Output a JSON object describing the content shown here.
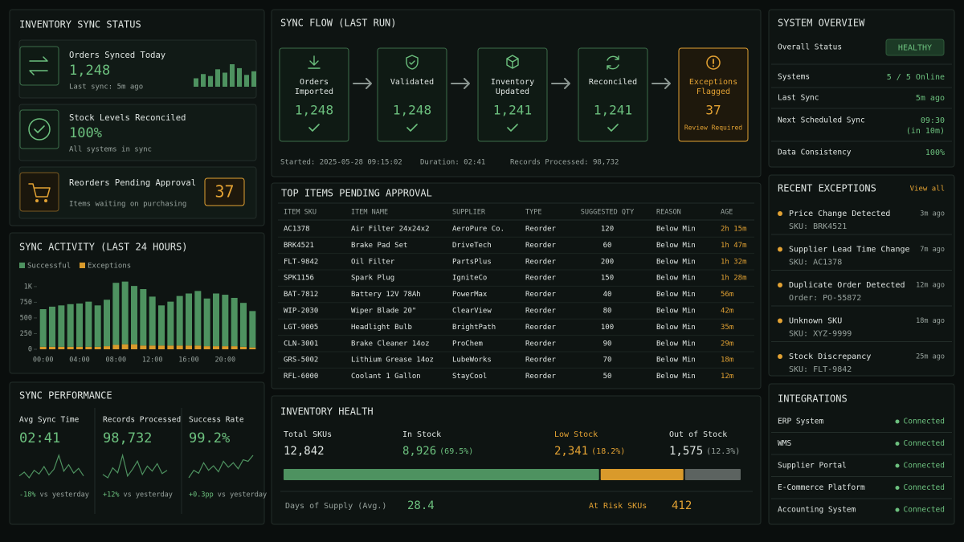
{
  "inventory_sync_status": {
    "title": "INVENTORY SYNC STATUS",
    "orders_synced": {
      "label": "Orders Synced Today",
      "value": "1,248",
      "note": "Last sync: 5m ago",
      "trend": [
        30,
        45,
        38,
        62,
        50,
        80,
        66,
        42,
        55
      ]
    },
    "stock_reconciled": {
      "label": "Stock Levels Reconciled",
      "value": "100%",
      "note": "All systems in sync"
    },
    "reorders_pending": {
      "label": "Reorders Pending Approval",
      "note": "Items waiting on purchasing",
      "value": "37"
    }
  },
  "chart_data": {
    "type": "bar",
    "stacked": true,
    "title": "SYNC ACTIVITY (LAST 24 HOURS)",
    "categories": [
      "00:00",
      null,
      null,
      null,
      "04:00",
      null,
      null,
      null,
      "08:00",
      null,
      null,
      null,
      "12:00",
      null,
      null,
      null,
      "16:00",
      null,
      null,
      null,
      "20:00",
      null,
      null,
      null
    ],
    "series": [
      {
        "name": "Successful",
        "color": "#4e9260",
        "values": [
          600,
          640,
          660,
          680,
          690,
          720,
          660,
          740,
          990,
          1000,
          930,
          900,
          780,
          640,
          700,
          790,
          830,
          870,
          760,
          840,
          820,
          770,
          700,
          580
        ]
      },
      {
        "name": "Exceptions",
        "color": "#d99a2b",
        "values": [
          40,
          40,
          40,
          40,
          40,
          40,
          40,
          50,
          70,
          80,
          80,
          60,
          60,
          60,
          60,
          60,
          60,
          60,
          50,
          50,
          50,
          50,
          40,
          30
        ]
      }
    ],
    "ylim": [
      0,
      1050
    ],
    "yticks": [
      0,
      250,
      500,
      750,
      {
        "value": 1000,
        "label": "1K"
      }
    ]
  },
  "sync_performance": {
    "title": "SYNC PERFORMANCE",
    "metrics": [
      {
        "label": "Avg Sync Time",
        "value": "02:41",
        "change": "-18%",
        "comparison": "vs yesterday",
        "trend": [
          40,
          44,
          38,
          46,
          42,
          50,
          41,
          47,
          62,
          45,
          52,
          43,
          48,
          40
        ]
      },
      {
        "label": "Records Processed",
        "value": "98,732",
        "change": "+12%",
        "comparison": "vs yesterday",
        "trend": [
          42,
          38,
          50,
          44,
          65,
          40,
          48,
          58,
          42,
          52,
          46,
          55,
          43,
          47
        ]
      },
      {
        "label": "Success Rate",
        "value": "99.2%",
        "change": "+0.3pp",
        "comparison": "vs yesterday",
        "trend": [
          45,
          50,
          48,
          55,
          50,
          53,
          49,
          56,
          52,
          55,
          51,
          57,
          56,
          60
        ]
      }
    ]
  },
  "sync_flow": {
    "title": "SYNC FLOW (LAST RUN)",
    "steps": [
      {
        "label": [
          "Orders",
          "Imported"
        ],
        "value": "1,248"
      },
      {
        "label": [
          "Validated"
        ],
        "value": "1,248"
      },
      {
        "label": [
          "Inventory",
          "Updated"
        ],
        "value": "1,241"
      },
      {
        "label": [
          "Reconciled"
        ],
        "value": "1,241"
      },
      {
        "label": [
          "Exceptions",
          "Flagged"
        ],
        "value": "37",
        "note": "Review Required"
      }
    ],
    "started": "Started: 2025-05-28 09:15:02",
    "duration": "Duration: 02:41",
    "records": "Records Processed: 98,732"
  },
  "top_items": {
    "title": "TOP ITEMS PENDING APPROVAL",
    "columns": [
      "ITEM SKU",
      "ITEM NAME",
      "SUPPLIER",
      "TYPE",
      "SUGGESTED QTY",
      "REASON",
      "AGE"
    ],
    "rows": [
      [
        "AC1378",
        "Air Filter 24x24x2",
        "AeroPure Co.",
        "Reorder",
        120,
        "Below Min",
        "2h 15m"
      ],
      [
        "BRK4521",
        "Brake Pad Set",
        "DriveTech",
        "Reorder",
        60,
        "Below Min",
        "1h 47m"
      ],
      [
        "FLT-9842",
        "Oil Filter",
        "PartsPlus",
        "Reorder",
        200,
        "Below Min",
        "1h 32m"
      ],
      [
        "SPK1156",
        "Spark Plug",
        "IgniteCo",
        "Reorder",
        150,
        "Below Min",
        "1h 28m"
      ],
      [
        "BAT-7812",
        "Battery 12V 78Ah",
        "PowerMax",
        "Reorder",
        40,
        "Below Min",
        "56m"
      ],
      [
        "WIP-2030",
        "Wiper Blade 20\"",
        "ClearView",
        "Reorder",
        80,
        "Below Min",
        "42m"
      ],
      [
        "LGT-9005",
        "Headlight Bulb",
        "BrightPath",
        "Reorder",
        100,
        "Below Min",
        "35m"
      ],
      [
        "CLN-3001",
        "Brake Cleaner 14oz",
        "ProChem",
        "Reorder",
        90,
        "Below Min",
        "29m"
      ],
      [
        "GRS-5002",
        "Lithium Grease 14oz",
        "LubeWorks",
        "Reorder",
        70,
        "Below Min",
        "18m"
      ],
      [
        "RFL-6000",
        "Coolant 1 Gallon",
        "StayCool",
        "Reorder",
        50,
        "Below Min",
        "12m"
      ]
    ]
  },
  "inventory_health": {
    "title": "INVENTORY HEALTH",
    "total": {
      "label": "Total SKUs",
      "value": {
        "value": 12842,
        "label": "12,842"
      }
    },
    "segments": [
      {
        "label": "In Stock",
        "value": {
          "value": 8926,
          "label": "8,926"
        },
        "share": "(69.5%)",
        "color": "#4e9260"
      },
      {
        "label": "Low Stock",
        "value": {
          "value": 2341,
          "label": "2,341"
        },
        "share": "(18.2%)",
        "color": "#d99a2b"
      },
      {
        "label": "Out of Stock",
        "value": {
          "value": 1575,
          "label": "1,575"
        },
        "share": "(12.3%)",
        "color": "#5c6360"
      }
    ],
    "days_of_supply": {
      "label": "Days of Supply (Avg.)",
      "value": 28.4
    },
    "at_risk": {
      "label": "At Risk SKUs",
      "value": 412
    }
  },
  "system_overview": {
    "title": "SYSTEM OVERVIEW",
    "status": {
      "label": "Overall Status",
      "value": "HEALTHY"
    },
    "rows": [
      {
        "label": "Systems",
        "value": "5 / 5 Online"
      },
      {
        "label": "Last Sync",
        "value": "5m ago"
      },
      {
        "label": "Next Scheduled Sync",
        "value": "09:30",
        "note": "(in 10m)"
      },
      {
        "label": "Data Consistency",
        "value": "100%"
      }
    ]
  },
  "recent_exceptions": {
    "title": "RECENT EXCEPTIONS",
    "link": "View all",
    "items": [
      {
        "title": "Price Change Detected",
        "detail": "SKU: BRK4521",
        "time": "3m ago"
      },
      {
        "title": "Supplier Lead Time Change",
        "detail": "SKU: AC1378",
        "time": "7m ago"
      },
      {
        "title": "Duplicate Order Detected",
        "detail": "Order: PO-55872",
        "time": "12m ago"
      },
      {
        "title": "Unknown SKU",
        "detail": "SKU: XYZ-9999",
        "time": "18m ago"
      },
      {
        "title": "Stock Discrepancy",
        "detail": "SKU: FLT-9842",
        "time": "25m ago"
      }
    ]
  },
  "integrations": {
    "title": "INTEGRATIONS",
    "items": [
      {
        "name": "ERP System",
        "status": "Connected"
      },
      {
        "name": "WMS",
        "status": "Connected"
      },
      {
        "name": "Supplier Portal",
        "status": "Connected"
      },
      {
        "name": "E-Commerce Platform",
        "status": "Connected"
      },
      {
        "name": "Accounting System",
        "status": "Connected"
      }
    ]
  }
}
